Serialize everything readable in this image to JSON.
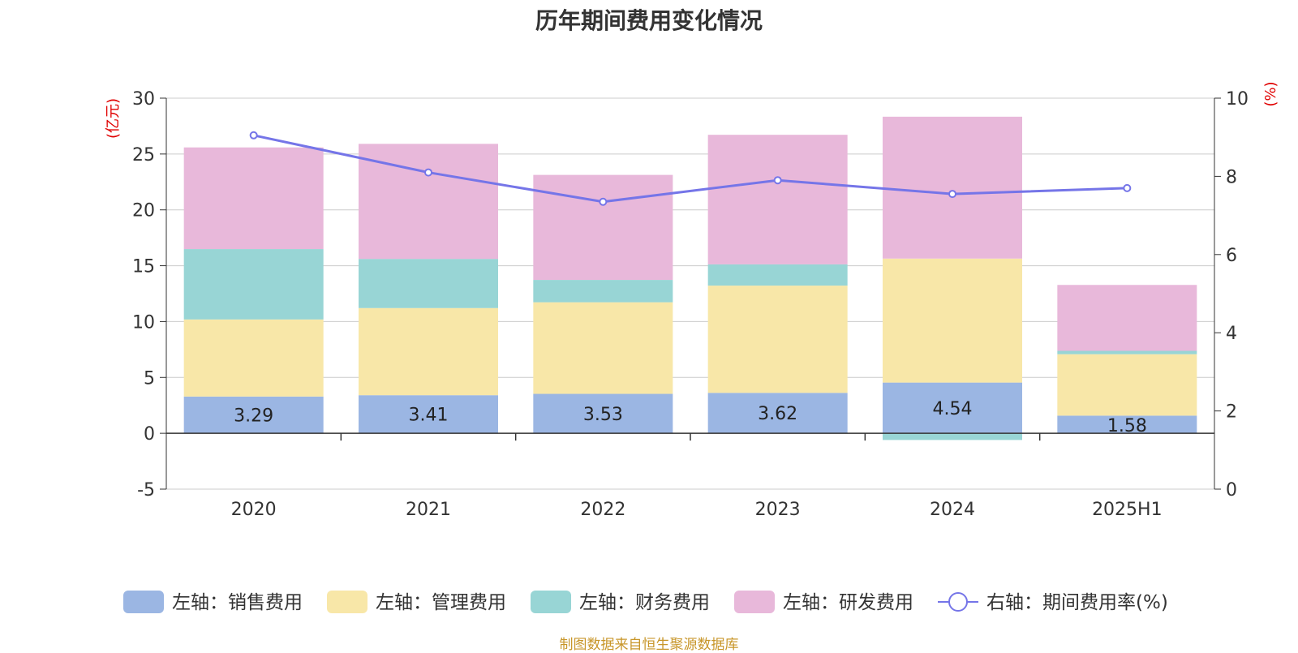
{
  "title": "历年期间费用变化情况",
  "source": "制图数据来自恒生聚源数据库",
  "chart_data": {
    "type": "bar",
    "stacked": true,
    "categories": [
      "2020",
      "2021",
      "2022",
      "2023",
      "2024",
      "2025H1"
    ],
    "left_axis": {
      "unit": "(亿元)",
      "ylim": [
        -5,
        30
      ],
      "ticks": [
        -5,
        0,
        5,
        10,
        15,
        20,
        25,
        30
      ]
    },
    "right_axis": {
      "unit": "(%)",
      "ylim": [
        0,
        10
      ],
      "ticks": [
        0,
        2,
        4,
        6,
        8,
        10
      ]
    },
    "series": [
      {
        "name": "左轴：销售费用",
        "type": "bar",
        "axis": "left",
        "color": "#9bb6e3",
        "values": [
          3.29,
          3.41,
          3.53,
          3.62,
          4.54,
          1.58
        ],
        "labels": [
          "3.29",
          "3.41",
          "3.53",
          "3.62",
          "4.54",
          "1.58"
        ]
      },
      {
        "name": "左轴：管理费用",
        "type": "bar",
        "axis": "left",
        "color": "#f8e7a8",
        "values": [
          6.9,
          7.8,
          8.2,
          9.6,
          11.1,
          5.5
        ]
      },
      {
        "name": "左轴：财务费用",
        "type": "bar",
        "axis": "left",
        "color": "#98d5d5",
        "values": [
          6.3,
          4.4,
          2.0,
          1.9,
          -0.6,
          0.3
        ]
      },
      {
        "name": "左轴：研发费用",
        "type": "bar",
        "axis": "left",
        "color": "#e8b8da",
        "values": [
          9.1,
          10.3,
          9.4,
          11.6,
          12.7,
          5.9
        ]
      },
      {
        "name": "右轴：期间费用率(%)",
        "type": "line",
        "axis": "right",
        "color": "#7575e8",
        "values": [
          9.05,
          8.1,
          7.35,
          7.9,
          7.55,
          7.7
        ]
      }
    ],
    "grid": true,
    "legend_position": "bottom"
  }
}
